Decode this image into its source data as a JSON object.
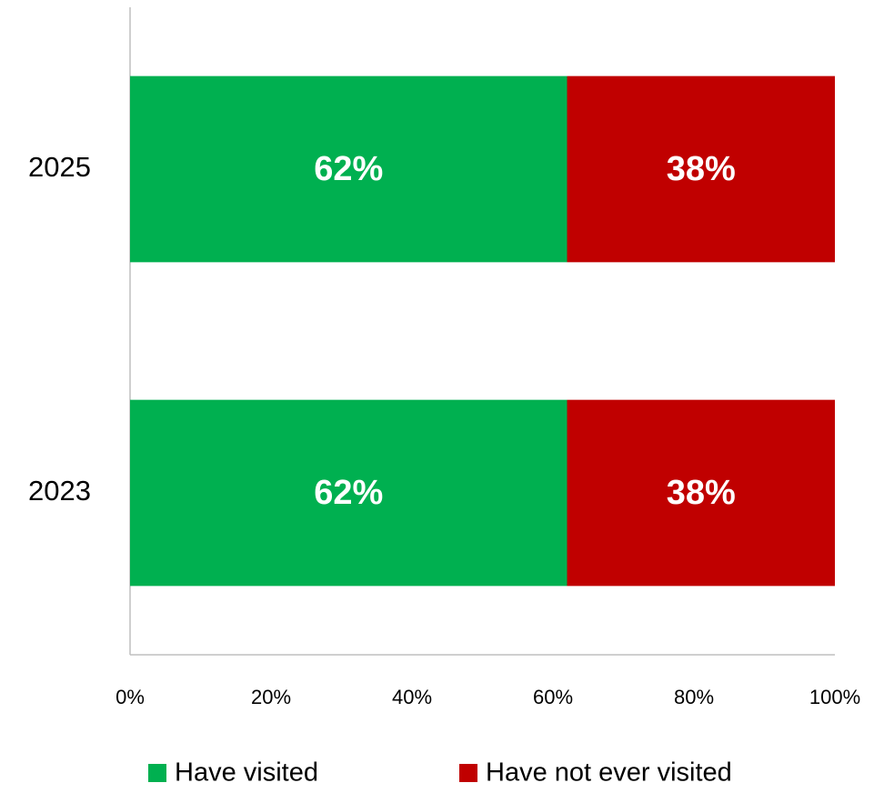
{
  "chart_data": {
    "type": "stacked-bar-horizontal",
    "categories": [
      "2025",
      "2023"
    ],
    "series": [
      {
        "name": "Have visited",
        "color": "#00b050",
        "values": [
          62,
          62
        ],
        "value_labels": [
          "62%",
          "62%"
        ]
      },
      {
        "name": "Have not ever visited",
        "color": "#c00000",
        "values": [
          38,
          38
        ],
        "value_labels": [
          "38%",
          "38%"
        ]
      }
    ],
    "xlim": [
      0,
      100
    ],
    "xticks": [
      {
        "value": 0,
        "label": "0%"
      },
      {
        "value": 20,
        "label": "20%"
      },
      {
        "value": 40,
        "label": "40%"
      },
      {
        "value": 60,
        "label": "60%"
      },
      {
        "value": 80,
        "label": "80%"
      },
      {
        "value": 100,
        "label": "100%"
      }
    ],
    "grid": false,
    "legend": "bottom"
  }
}
